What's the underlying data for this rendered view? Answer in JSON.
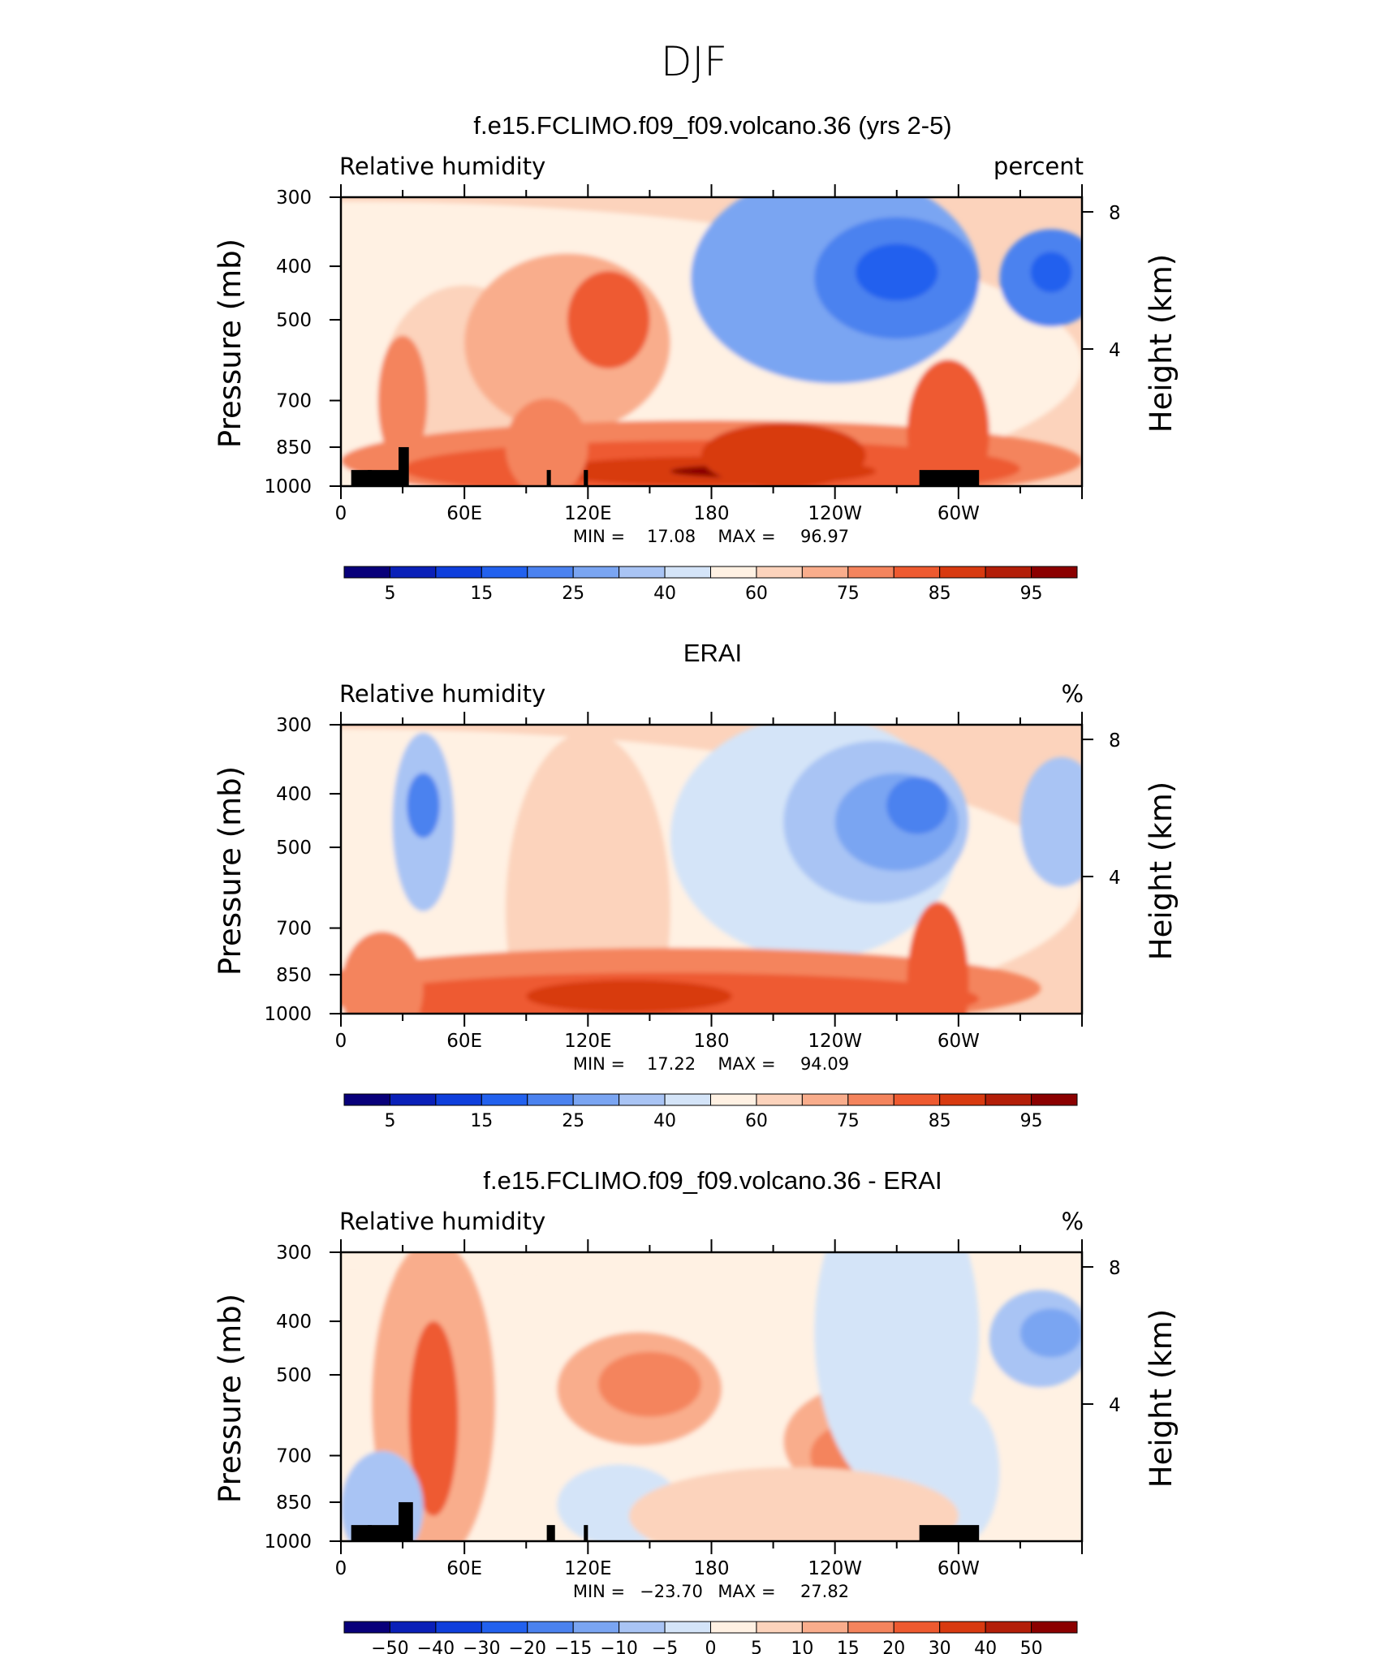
{
  "main_title": "DJF",
  "colors": {
    "rh_palette": [
      "#08007a",
      "#0a20b8",
      "#0f3fdc",
      "#2261ee",
      "#4b82ef",
      "#7aa5f2",
      "#a9c4f4",
      "#d4e4f8",
      "#fff1e3",
      "#fcd3bc",
      "#f9ad8c",
      "#f4845d",
      "#ee5a30",
      "#d83a10",
      "#b31e08",
      "#8b0000"
    ],
    "mask": "#000000"
  },
  "chart_data": [
    {
      "type": "heatmap",
      "title": "f.e15.FCLIMO.f09_f09.volcano.36 (yrs 2-5)",
      "variable": "Relative humidity",
      "units": "percent",
      "ylabel": "Pressure (mb)",
      "ylabel_right": "Height (km)",
      "x_ticks": [
        "0",
        "60E",
        "120E",
        "180",
        "120W",
        "60W"
      ],
      "y_ticks": [
        "300",
        "400",
        "500",
        "700",
        "850",
        "1000"
      ],
      "y_ticks_right": [
        "8",
        "4"
      ],
      "log_pressure_axis": true,
      "min_label": "MIN =",
      "min": "17.08",
      "max_label": "MAX =",
      "max": "96.97",
      "colorbar_labels": [
        "5",
        "15",
        "25",
        "40",
        "60",
        "75",
        "85",
        "95"
      ],
      "has_topography_mask": true
    },
    {
      "type": "heatmap",
      "title": "ERAI",
      "variable": "Relative humidity",
      "units": "%",
      "ylabel": "Pressure (mb)",
      "ylabel_right": "Height (km)",
      "x_ticks": [
        "0",
        "60E",
        "120E",
        "180",
        "120W",
        "60W"
      ],
      "y_ticks": [
        "300",
        "400",
        "500",
        "700",
        "850",
        "1000"
      ],
      "y_ticks_right": [
        "8",
        "4"
      ],
      "log_pressure_axis": true,
      "min_label": "MIN =",
      "min": "17.22",
      "max_label": "MAX =",
      "max": "94.09",
      "colorbar_labels": [
        "5",
        "15",
        "25",
        "40",
        "60",
        "75",
        "85",
        "95"
      ],
      "has_topography_mask": false
    },
    {
      "type": "heatmap",
      "title": "f.e15.FCLIMO.f09_f09.volcano.36 - ERAI",
      "variable": "Relative humidity",
      "units": "%",
      "ylabel": "Pressure (mb)",
      "ylabel_right": "Height (km)",
      "x_ticks": [
        "0",
        "60E",
        "120E",
        "180",
        "120W",
        "60W"
      ],
      "y_ticks": [
        "300",
        "400",
        "500",
        "700",
        "850",
        "1000"
      ],
      "y_ticks_right": [
        "8",
        "4"
      ],
      "log_pressure_axis": true,
      "min_label": "MIN =",
      "min": "−23.70",
      "max_label": "MAX =",
      "max": "27.82",
      "colorbar_labels": [
        "−50",
        "−40",
        "−30",
        "−20",
        "−15",
        "−10",
        "−5",
        "0",
        "5",
        "10",
        "15",
        "20",
        "30",
        "40",
        "50"
      ],
      "has_topography_mask": true
    }
  ]
}
